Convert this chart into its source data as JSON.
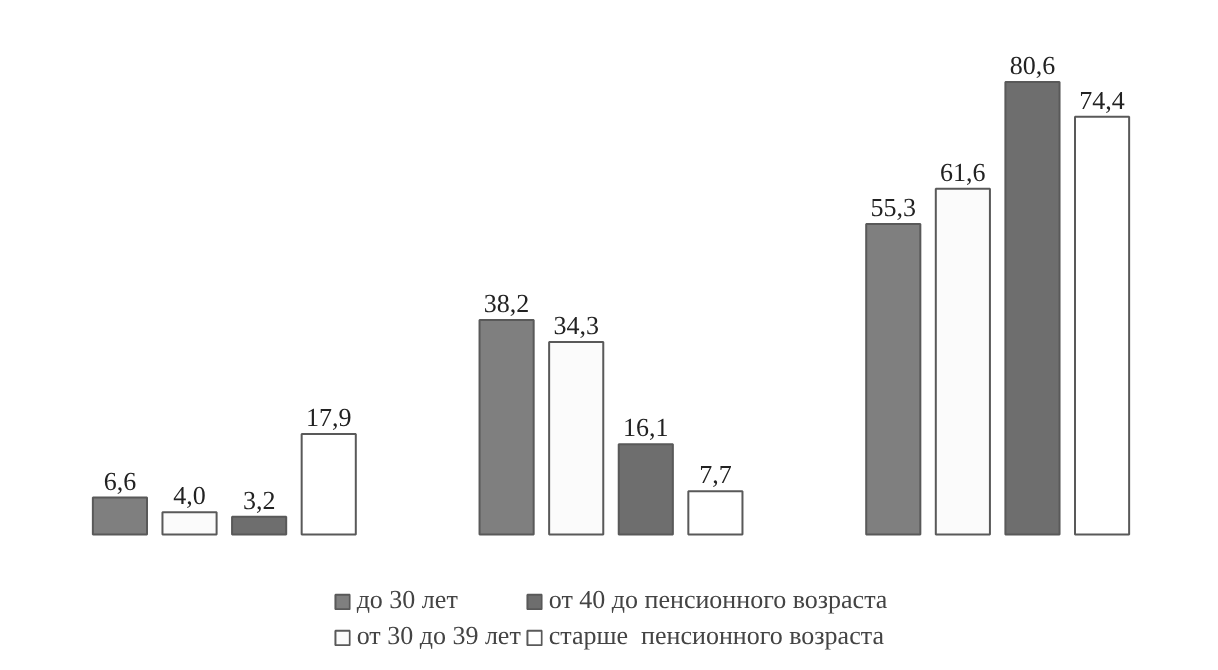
{
  "chart_data": {
    "type": "bar",
    "categories": [
      null,
      null,
      null
    ],
    "series": [
      {
        "name": "до 30 лет",
        "color": "#7f7f7f",
        "values": [
          6.6,
          38.2,
          55.3
        ],
        "value_labels": [
          "6,6",
          "38,2",
          "55,3"
        ]
      },
      {
        "name": "от 30 до 39 лет",
        "color": "#fbfbfb",
        "values": [
          4.0,
          34.3,
          61.6
        ],
        "value_labels": [
          "4,0",
          "34,3",
          "61,6"
        ]
      },
      {
        "name": "от 40 до пенсионного возраста",
        "color": "#6e6e6e",
        "values": [
          3.2,
          16.1,
          80.6
        ],
        "value_labels": [
          "3,2",
          "16,1",
          "80,6"
        ]
      },
      {
        "name": "старше  пенсионного возраста",
        "color": "#ffffff",
        "values": [
          17.9,
          7.7,
          74.4
        ],
        "value_labels": [
          "17,9",
          "7,7",
          "74,4"
        ]
      }
    ],
    "tick_labels": false,
    "legend": "bottom"
  }
}
